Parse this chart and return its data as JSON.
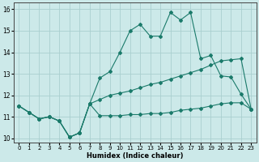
{
  "xlabel": "Humidex (Indice chaleur)",
  "background_color": "#cce9e9",
  "grid_color": "#aacfcf",
  "line_color": "#1a7a6a",
  "xlim": [
    -0.5,
    23.5
  ],
  "ylim": [
    9.8,
    16.3
  ],
  "yticks": [
    10,
    11,
    12,
    13,
    14,
    15,
    16
  ],
  "xticks": [
    0,
    1,
    2,
    3,
    4,
    5,
    6,
    7,
    8,
    9,
    10,
    11,
    12,
    13,
    14,
    15,
    16,
    17,
    18,
    19,
    20,
    21,
    22,
    23
  ],
  "line1_x": [
    0,
    1,
    2,
    3,
    4,
    5,
    6,
    7,
    8,
    9,
    10,
    11,
    12,
    13,
    14,
    15,
    16,
    17,
    18,
    19,
    20,
    21,
    22,
    23
  ],
  "line1_y": [
    11.5,
    11.2,
    10.9,
    11.0,
    10.8,
    10.05,
    10.25,
    11.6,
    12.8,
    13.1,
    14.0,
    15.0,
    15.3,
    14.75,
    14.75,
    15.85,
    15.5,
    15.85,
    13.7,
    13.85,
    12.9,
    12.85,
    12.05,
    11.35
  ],
  "line2_x": [
    0,
    1,
    2,
    3,
    4,
    5,
    6,
    7,
    8,
    9,
    10,
    11,
    12,
    13,
    14,
    15,
    16,
    17,
    18,
    19,
    20,
    21,
    22,
    23
  ],
  "line2_y": [
    11.5,
    11.2,
    10.9,
    11.0,
    10.8,
    10.05,
    10.25,
    11.6,
    11.8,
    12.0,
    12.1,
    12.2,
    12.35,
    12.5,
    12.6,
    12.75,
    12.9,
    13.05,
    13.2,
    13.4,
    13.6,
    13.65,
    13.7,
    11.35
  ],
  "line3_x": [
    0,
    1,
    2,
    3,
    4,
    5,
    6,
    7,
    8,
    9,
    10,
    11,
    12,
    13,
    14,
    15,
    16,
    17,
    18,
    19,
    20,
    21,
    22,
    23
  ],
  "line3_y": [
    11.5,
    11.2,
    10.9,
    11.0,
    10.8,
    10.05,
    10.25,
    11.6,
    11.05,
    11.05,
    11.05,
    11.1,
    11.1,
    11.15,
    11.15,
    11.2,
    11.3,
    11.35,
    11.4,
    11.5,
    11.6,
    11.65,
    11.65,
    11.35
  ]
}
